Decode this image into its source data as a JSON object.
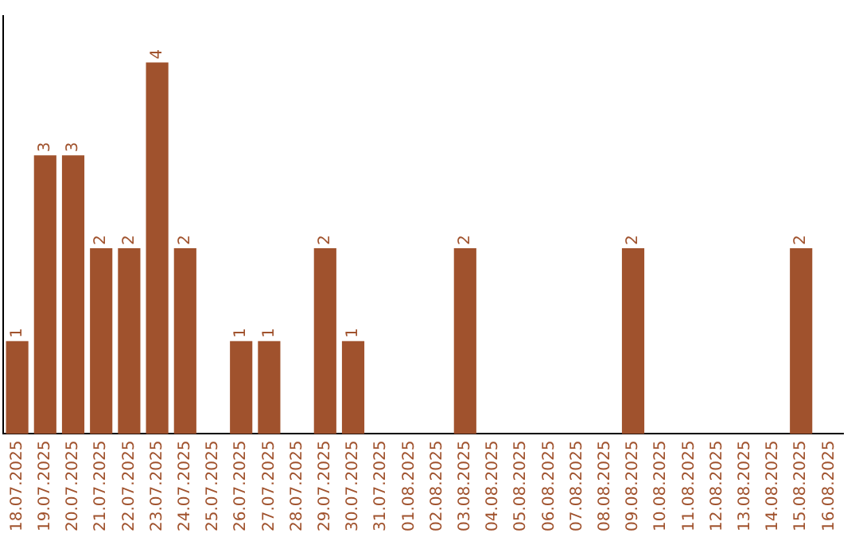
{
  "chart_data": {
    "type": "bar",
    "categories": [
      "18.07.2025",
      "19.07.2025",
      "20.07.2025",
      "21.07.2025",
      "22.07.2025",
      "23.07.2025",
      "24.07.2025",
      "25.07.2025",
      "26.07.2025",
      "27.07.2025",
      "28.07.2025",
      "29.07.2025",
      "30.07.2025",
      "31.07.2025",
      "01.08.2025",
      "02.08.2025",
      "03.08.2025",
      "04.08.2025",
      "05.08.2025",
      "06.08.2025",
      "07.08.2025",
      "08.08.2025",
      "09.08.2025",
      "10.08.2025",
      "11.08.2025",
      "12.08.2025",
      "13.08.2025",
      "14.08.2025",
      "15.08.2025",
      "16.08.2025"
    ],
    "values": [
      1,
      3,
      3,
      2,
      2,
      4,
      2,
      0,
      1,
      1,
      0,
      2,
      1,
      0,
      0,
      0,
      2,
      0,
      0,
      0,
      0,
      0,
      2,
      0,
      0,
      0,
      0,
      0,
      2,
      0
    ],
    "value_labels": [
      "1",
      "3",
      "3",
      "2",
      "2",
      "4",
      "2",
      null,
      "1",
      "1",
      null,
      "2",
      "1",
      null,
      null,
      null,
      "2",
      null,
      null,
      null,
      null,
      null,
      "2",
      null,
      null,
      null,
      null,
      null,
      "2",
      null
    ],
    "color": "#a0522d",
    "grid": false,
    "legend": false
  }
}
